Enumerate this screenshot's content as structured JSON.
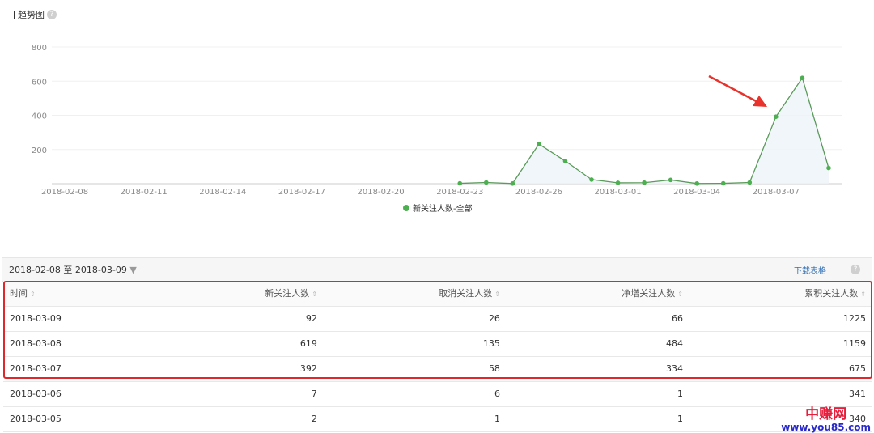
{
  "chart_title": "趋势图",
  "help_icon": "?",
  "chart_data": {
    "type": "area",
    "title": "趋势图",
    "x_tick_labels": [
      "2018-02-08",
      "2018-02-11",
      "2018-02-14",
      "2018-02-17",
      "2018-02-20",
      "2018-02-23",
      "2018-02-26",
      "2018-03-01",
      "2018-03-04",
      "2018-03-07"
    ],
    "y_tick_labels": [
      "200",
      "400",
      "600",
      "800"
    ],
    "ylim": [
      0,
      800
    ],
    "grid": true,
    "legend_position": "bottom",
    "series": [
      {
        "name": "新关注人数-全部",
        "color": "#4caf50",
        "x": [
          "2018-02-23",
          "2018-02-24",
          "2018-02-25",
          "2018-02-26",
          "2018-02-27",
          "2018-02-28",
          "2018-03-01",
          "2018-03-02",
          "2018-03-03",
          "2018-03-04",
          "2018-03-05",
          "2018-03-06",
          "2018-03-07",
          "2018-03-08",
          "2018-03-09"
        ],
        "values": [
          2,
          7,
          1,
          232,
          133,
          24,
          5,
          6,
          22,
          1,
          2,
          7,
          392,
          619,
          92
        ]
      }
    ],
    "annotation": "red arrow pointing to 2018-03-07"
  },
  "table_bar": {
    "date_range": "2018-02-08 至 2018-03-09",
    "download": "下载表格"
  },
  "table": {
    "headers": [
      "时间",
      "新关注人数",
      "取消关注人数",
      "净增关注人数",
      "累积关注人数"
    ],
    "rows": [
      [
        "2018-03-09",
        "92",
        "26",
        "66",
        "1225"
      ],
      [
        "2018-03-08",
        "619",
        "135",
        "484",
        "1159"
      ],
      [
        "2018-03-07",
        "392",
        "58",
        "334",
        "675"
      ],
      [
        "2018-03-06",
        "7",
        "6",
        "1",
        "341"
      ],
      [
        "2018-03-05",
        "2",
        "1",
        "1",
        "340"
      ]
    ]
  },
  "watermark": {
    "line1": "中赚网",
    "line2": "www.you85.com"
  }
}
